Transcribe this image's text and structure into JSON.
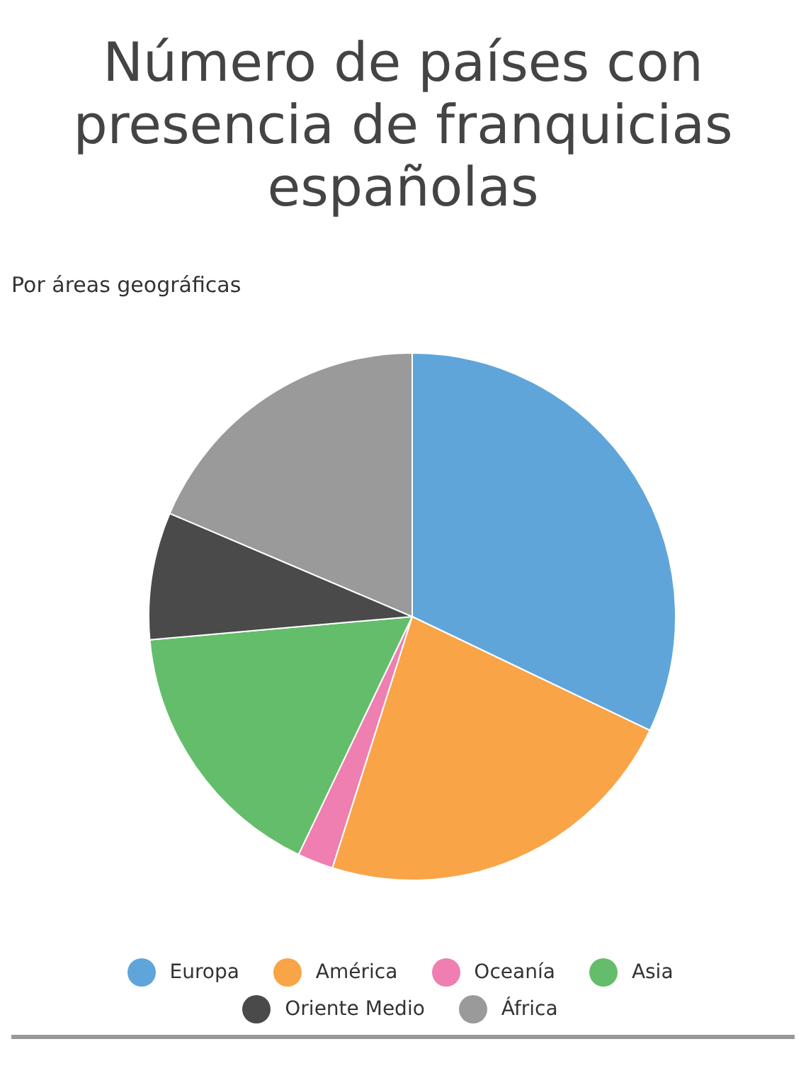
{
  "chart_data": {
    "type": "pie",
    "title": "Número de países con presencia de franquicias españolas",
    "subtitle": "Por áreas geográficas",
    "categories": [
      "Europa",
      "América",
      "Oceanía",
      "Asia",
      "Oriente Medio",
      "África"
    ],
    "values": [
      32.1,
      22.8,
      2.2,
      16.5,
      7.8,
      18.6
    ],
    "colors": [
      "#5fa5d9",
      "#f9a447",
      "#ef7fb0",
      "#64bd6a",
      "#4a4a4a",
      "#9a9a9a"
    ],
    "legend": "bottom"
  }
}
